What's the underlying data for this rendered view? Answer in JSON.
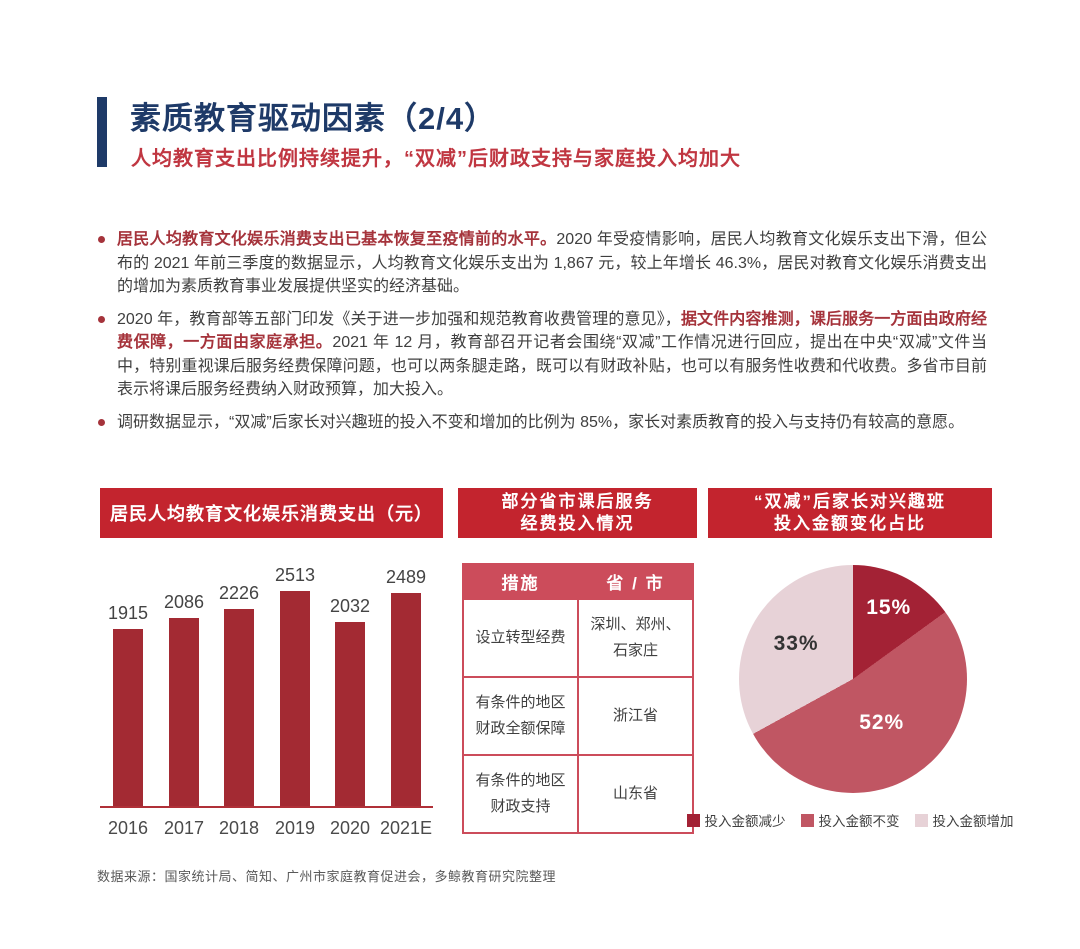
{
  "page": {
    "title": "素质教育驱动因素（2/4）",
    "subtitle": "人均教育支出比例持续提升，“双减”后财政支持与家庭投入均加大",
    "footer": "数据来源：国家统计局、简知、广州市家庭教育促进会，多鲸教育研究院整理"
  },
  "colors": {
    "navy_accent": "#1E3A68",
    "subtitle_red": "#C03641",
    "panel_header_red": "#C3242E",
    "bold_text_red": "#A5333B",
    "bar_red": "#A32A33",
    "table_accent": "#CC4C5B",
    "body_text": "#3F3F3F",
    "footer_text": "#595959"
  },
  "bullets": [
    {
      "segments": [
        {
          "text": "居民人均教育文化娱乐消费支出已基本恢复至疫情前的水平。",
          "bold": true
        },
        {
          "text": "2020 年受疫情影响，居民人均教育文化娱乐支出下滑，但公布的 2021 年前三季度的数据显示，人均教育文化娱乐支出为 1,867 元，较上年增长 46.3%，居民对教育文化娱乐消费支出的增加为素质教育事业发展提供坚实的经济基础。",
          "bold": false
        }
      ]
    },
    {
      "segments": [
        {
          "text": "2020 年，教育部等五部门印发《关于进一步加强和规范教育收费管理的意见》，",
          "bold": false
        },
        {
          "text": "据文件内容推测，课后服务一方面由政府经费保障，一方面由家庭承担。",
          "bold": true
        },
        {
          "text": "2021 年 12 月，教育部召开记者会围绕“双减”工作情况进行回应，提出在中央“双减”文件当中，特别重视课后服务经费保障问题，也可以两条腿走路，既可以有财政补贴，也可以有服务性收费和代收费。多省市目前表示将课后服务经费纳入财政预算，加大投入。",
          "bold": false
        }
      ]
    },
    {
      "segments": [
        {
          "text": "调研数据显示，“双减”后家长对兴趣班的投入不变和增加的比例为 85%，家长对素质教育的投入与支持仍有较高的意愿。",
          "bold": false
        }
      ]
    }
  ],
  "chart_data": [
    {
      "type": "bar",
      "title": "居民人均教育文化娱乐消费支出（元）",
      "categories": [
        "2016",
        "2017",
        "2018",
        "2019",
        "2020",
        "2021E"
      ],
      "values": [
        1915,
        2086,
        2226,
        2513,
        2032,
        2489
      ],
      "xlabel": "",
      "ylabel": "",
      "grid": false,
      "bar_color": "#A32A33",
      "data_labels": [
        "1915",
        "2086",
        "2226",
        "2513",
        "2032",
        "2489"
      ]
    },
    {
      "type": "table",
      "title": "部分省市课后服务\n经费投入情况",
      "headers": [
        "措施",
        "省 / 市"
      ],
      "rows": [
        [
          "设立转型经费",
          "深圳、郑州、石家庄"
        ],
        [
          "有条件的地区财政全额保障",
          "浙江省"
        ],
        [
          "有条件的地区财政支持",
          "山东省"
        ]
      ]
    },
    {
      "type": "pie",
      "title": "“双减”后家长对兴趣班\n投入金额变化占比",
      "start_angle_deg": 0,
      "direction": "clockwise",
      "legend_position": "bottom",
      "slices": [
        {
          "label": "投入金额减少",
          "value": 15,
          "display": "15%",
          "color": "#A32235"
        },
        {
          "label": "投入金额不变",
          "value": 52,
          "display": "52%",
          "color": "#C05663"
        },
        {
          "label": "投入金额增加",
          "value": 33,
          "display": "33%",
          "color": "#E7D2D7"
        }
      ]
    }
  ]
}
